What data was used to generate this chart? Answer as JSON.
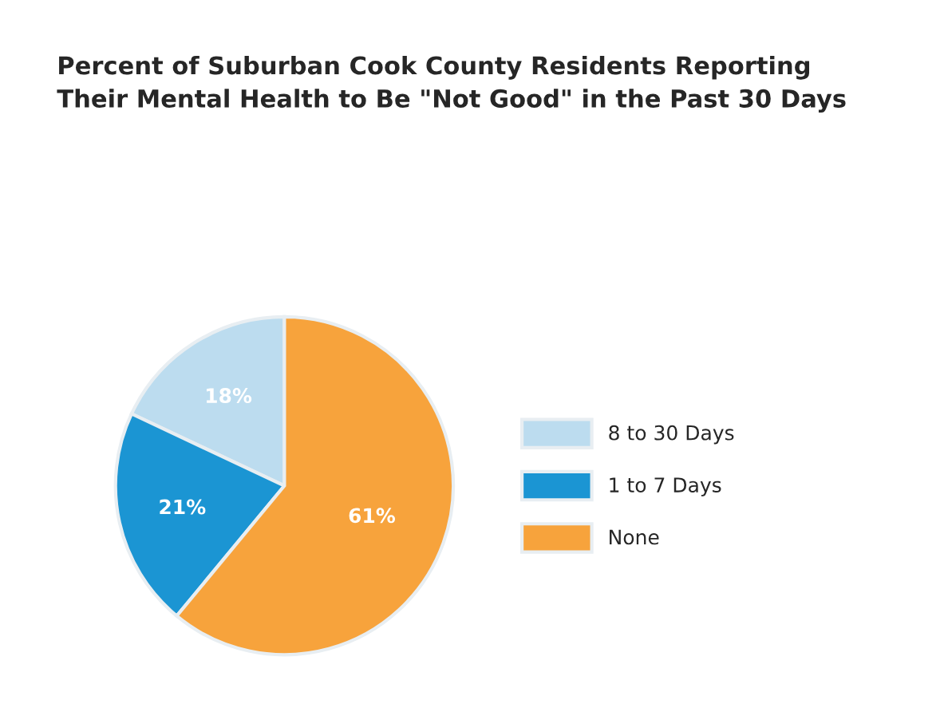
{
  "chart_data": {
    "type": "pie",
    "title": "Percent of Suburban Cook County Residents Reporting\nTheir Mental Health to Be \"Not Good\" in the Past 30 Days",
    "categories": [
      "8 to 30 Days",
      "1 to 7 Days",
      "None"
    ],
    "values": [
      18,
      21,
      61
    ],
    "colors": [
      "#bcdcef",
      "#1b95d3",
      "#f7a33c"
    ],
    "value_labels": [
      "18%",
      "21%",
      "61%"
    ],
    "legend": "right"
  }
}
